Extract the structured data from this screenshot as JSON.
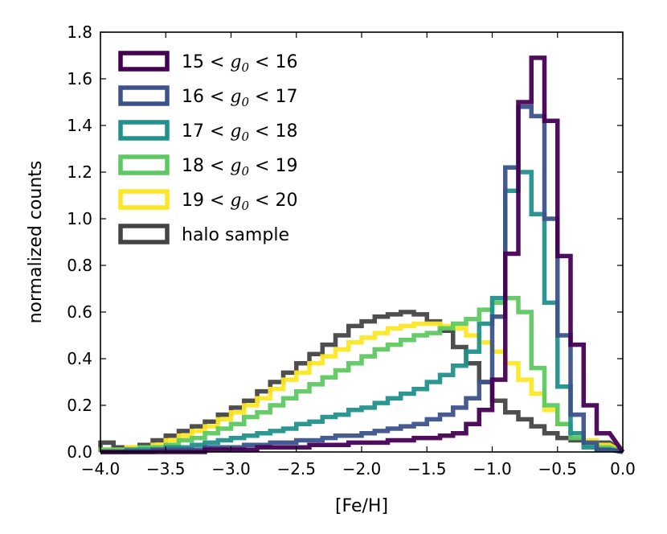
{
  "chart_data": {
    "type": "step-histogram",
    "title": "",
    "xlabel": "[Fe/H]",
    "ylabel": "normalized counts",
    "xlim": [
      -4.0,
      0.0
    ],
    "ylim": [
      0.0,
      1.8
    ],
    "xticks": [
      -4.0,
      -3.5,
      -3.0,
      -2.5,
      -2.0,
      -1.5,
      -1.0,
      -0.5,
      0.0
    ],
    "xtick_labels": [
      "−4.0",
      "−3.5",
      "−3.0",
      "−2.5",
      "−2.0",
      "−1.5",
      "−1.0",
      "−0.5",
      "0.0"
    ],
    "yticks": [
      0.0,
      0.2,
      0.4,
      0.6,
      0.8,
      1.0,
      1.2,
      1.4,
      1.6,
      1.8
    ],
    "ytick_labels": [
      "0.0",
      "0.2",
      "0.4",
      "0.6",
      "0.8",
      "1.0",
      "1.2",
      "1.4",
      "1.6",
      "1.8"
    ],
    "legend_position": "top-left",
    "bin_edges": [
      -4.0,
      -3.9,
      -3.8,
      -3.7,
      -3.6,
      -3.5,
      -3.4,
      -3.3,
      -3.2,
      -3.1,
      -3.0,
      -2.9,
      -2.8,
      -2.7,
      -2.6,
      -2.5,
      -2.4,
      -2.3,
      -2.2,
      -2.1,
      -2.0,
      -1.9,
      -1.8,
      -1.7,
      -1.6,
      -1.5,
      -1.4,
      -1.3,
      -1.2,
      -1.1,
      -1.0,
      -0.9,
      -0.8,
      -0.7,
      -0.6,
      -0.5,
      -0.4,
      -0.3,
      -0.2,
      -0.1
    ],
    "series": [
      {
        "name": "halo sample",
        "legend": {
          "text": "halo sample"
        },
        "color": "#444444",
        "values": [
          0.04,
          0.02,
          0.02,
          0.03,
          0.05,
          0.07,
          0.09,
          0.11,
          0.13,
          0.16,
          0.19,
          0.22,
          0.26,
          0.3,
          0.34,
          0.38,
          0.42,
          0.46,
          0.5,
          0.54,
          0.56,
          0.58,
          0.59,
          0.6,
          0.59,
          0.56,
          0.52,
          0.45,
          0.38,
          0.3,
          0.22,
          0.17,
          0.14,
          0.11,
          0.08,
          0.06,
          0.05,
          0.04,
          0.04
        ]
      },
      {
        "name": "19 < g0 < 20",
        "legend": {
          "pre": "19 < ",
          "math": "g",
          "sub": "0",
          "post": " < 20"
        },
        "color": "#fde725",
        "values": [
          0.01,
          0.01,
          0.02,
          0.02,
          0.03,
          0.05,
          0.07,
          0.09,
          0.11,
          0.14,
          0.17,
          0.2,
          0.23,
          0.27,
          0.31,
          0.34,
          0.38,
          0.41,
          0.44,
          0.47,
          0.49,
          0.51,
          0.53,
          0.54,
          0.55,
          0.55,
          0.54,
          0.53,
          0.5,
          0.47,
          0.43,
          0.38,
          0.31,
          0.25,
          0.18,
          0.12,
          0.08,
          0.05,
          0.03
        ]
      },
      {
        "name": "18 < g0 < 19",
        "legend": {
          "pre": "18 < ",
          "math": "g",
          "sub": "0",
          "post": " < 19"
        },
        "color": "#5ec962",
        "values": [
          0.01,
          0.01,
          0.01,
          0.02,
          0.02,
          0.03,
          0.05,
          0.06,
          0.08,
          0.1,
          0.12,
          0.15,
          0.17,
          0.2,
          0.23,
          0.26,
          0.29,
          0.32,
          0.35,
          0.38,
          0.41,
          0.44,
          0.46,
          0.48,
          0.5,
          0.51,
          0.53,
          0.55,
          0.57,
          0.61,
          0.64,
          0.66,
          0.6,
          0.36,
          0.2,
          0.12,
          0.06,
          0.03,
          0.02
        ]
      },
      {
        "name": "17 < g0 < 18",
        "legend": {
          "pre": "17 < ",
          "math": "g",
          "sub": "0",
          "post": " < 18"
        },
        "color": "#21918c",
        "values": [
          0.0,
          0.0,
          0.01,
          0.01,
          0.01,
          0.02,
          0.02,
          0.03,
          0.04,
          0.05,
          0.06,
          0.07,
          0.08,
          0.09,
          0.1,
          0.12,
          0.13,
          0.15,
          0.16,
          0.18,
          0.19,
          0.21,
          0.23,
          0.25,
          0.27,
          0.3,
          0.33,
          0.37,
          0.43,
          0.55,
          0.66,
          1.12,
          1.2,
          1.02,
          0.64,
          0.28,
          0.08,
          0.02,
          0.01
        ]
      },
      {
        "name": "16 < g0 < 17",
        "legend": {
          "pre": "16 < ",
          "math": "g",
          "sub": "0",
          "post": " < 17"
        },
        "color": "#3b528b",
        "values": [
          0.0,
          0.0,
          0.0,
          0.0,
          0.01,
          0.01,
          0.01,
          0.01,
          0.02,
          0.02,
          0.02,
          0.03,
          0.03,
          0.04,
          0.04,
          0.05,
          0.05,
          0.06,
          0.07,
          0.07,
          0.08,
          0.09,
          0.1,
          0.11,
          0.12,
          0.14,
          0.16,
          0.19,
          0.23,
          0.3,
          0.58,
          1.22,
          1.48,
          1.44,
          1.0,
          0.5,
          0.16,
          0.04,
          0.01
        ]
      },
      {
        "name": "15 < g0 < 16",
        "legend": {
          "pre": "15 < ",
          "math": "g",
          "sub": "0",
          "post": " < 16"
        },
        "color": "#440154",
        "values": [
          0.0,
          0.0,
          0.0,
          0.0,
          0.0,
          0.0,
          0.0,
          0.0,
          0.01,
          0.01,
          0.01,
          0.01,
          0.02,
          0.02,
          0.02,
          0.02,
          0.03,
          0.03,
          0.03,
          0.04,
          0.04,
          0.04,
          0.05,
          0.05,
          0.06,
          0.06,
          0.07,
          0.08,
          0.12,
          0.18,
          0.31,
          0.85,
          1.5,
          1.69,
          1.42,
          0.84,
          0.46,
          0.2,
          0.08
        ]
      }
    ],
    "legend_order": [
      "15 < g0 < 16",
      "16 < g0 < 17",
      "17 < g0 < 18",
      "18 < g0 < 19",
      "19 < g0 < 20",
      "halo sample"
    ]
  }
}
